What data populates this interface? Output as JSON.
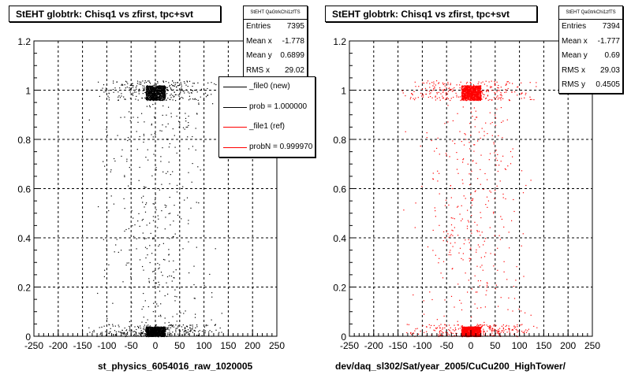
{
  "chart_data": [
    {
      "type": "scatter",
      "title": "StEHT globtrk: Chisq1 vs zfirst, tpc+svt",
      "xlabel": "",
      "ylabel": "",
      "xlim": [
        -250,
        250
      ],
      "ylim": [
        0,
        1.2
      ],
      "x_ticks": [
        "-250",
        "-200",
        "-150",
        "-100",
        "-50",
        "0",
        "50",
        "100",
        "150",
        "200",
        "250"
      ],
      "y_ticks": [
        "0",
        "0.2",
        "0.4",
        "0.6",
        "0.8",
        "1",
        "1.2"
      ],
      "grid": true,
      "marker_color": "#000000",
      "series": [
        {
          "name": "_file0 (new)",
          "clusters": [
            {
              "x_range": [
                -20,
                20
              ],
              "y_range": [
                0.96,
                1.02
              ],
              "density": "very high"
            },
            {
              "x_range": [
                -20,
                20
              ],
              "y_range": [
                0.0,
                0.04
              ],
              "density": "very high"
            },
            {
              "x_range": [
                -150,
                150
              ],
              "y_range": [
                0.96,
                1.04
              ],
              "density": "medium"
            },
            {
              "x_range": [
                -150,
                150
              ],
              "y_range": [
                0.0,
                0.05
              ],
              "density": "medium"
            },
            {
              "x_range": [
                -120,
                120
              ],
              "y_range": [
                0.05,
                0.95
              ],
              "density": "low, concentrated near x=0"
            }
          ]
        }
      ],
      "stats": {
        "name": "StEHT QaGtrkChi1zfTS",
        "entries_label": "Entries",
        "entries": "7395",
        "meanx_label": "Mean x",
        "meanx": "-1.778",
        "meany_label": "Mean y",
        "meany": "0.6899",
        "rmsx_label": "RMS x",
        "rmsx": "29.02"
      },
      "legend": {
        "placement": "top-right",
        "entries": [
          {
            "label": "_file0 (new)",
            "color": "#000000"
          },
          {
            "label": "prob = 1.000000",
            "color": "#000000"
          },
          {
            "label": "_file1 (ref)",
            "color": "#ff0000"
          },
          {
            "label": "probN = 0.999970",
            "color": "#ff0000"
          }
        ]
      },
      "footer": "st_physics_6054016_raw_1020005"
    },
    {
      "type": "scatter",
      "title": "StEHT globtrk: Chisq1 vs zfirst, tpc+svt",
      "xlabel": "",
      "ylabel": "",
      "xlim": [
        -250,
        250
      ],
      "ylim": [
        0,
        1.2
      ],
      "x_ticks": [
        "-250",
        "-200",
        "-150",
        "-100",
        "-50",
        "0",
        "50",
        "100",
        "150",
        "200",
        "250"
      ],
      "y_ticks": [
        "0",
        "0.2",
        "0.4",
        "0.6",
        "0.8",
        "1",
        "1.2"
      ],
      "grid": true,
      "marker_color": "#ff0000",
      "series": [
        {
          "name": "_file1 (ref)",
          "clusters": [
            {
              "x_range": [
                -20,
                20
              ],
              "y_range": [
                0.96,
                1.02
              ],
              "density": "very high"
            },
            {
              "x_range": [
                -20,
                20
              ],
              "y_range": [
                0.0,
                0.04
              ],
              "density": "very high"
            },
            {
              "x_range": [
                -150,
                150
              ],
              "y_range": [
                0.96,
                1.04
              ],
              "density": "medium"
            },
            {
              "x_range": [
                -150,
                150
              ],
              "y_range": [
                0.0,
                0.05
              ],
              "density": "medium"
            },
            {
              "x_range": [
                -120,
                120
              ],
              "y_range": [
                0.05,
                0.95
              ],
              "density": "low, concentrated near x=0"
            }
          ]
        }
      ],
      "stats": {
        "name": "StEHT QaGtrkChi1zfTS",
        "entries_label": "Entries",
        "entries": "7394",
        "meanx_label": "Mean x",
        "meanx": "-1.777",
        "meany_label": "Mean y",
        "meany": "0.69",
        "rmsx_label": "RMS x",
        "rmsx": "29.03",
        "rmsy_label": "RMS y",
        "rmsy": "0.4505"
      },
      "footer": "dev/daq_sl302/Sat/year_2005/CuCu200_HighTower/"
    }
  ]
}
